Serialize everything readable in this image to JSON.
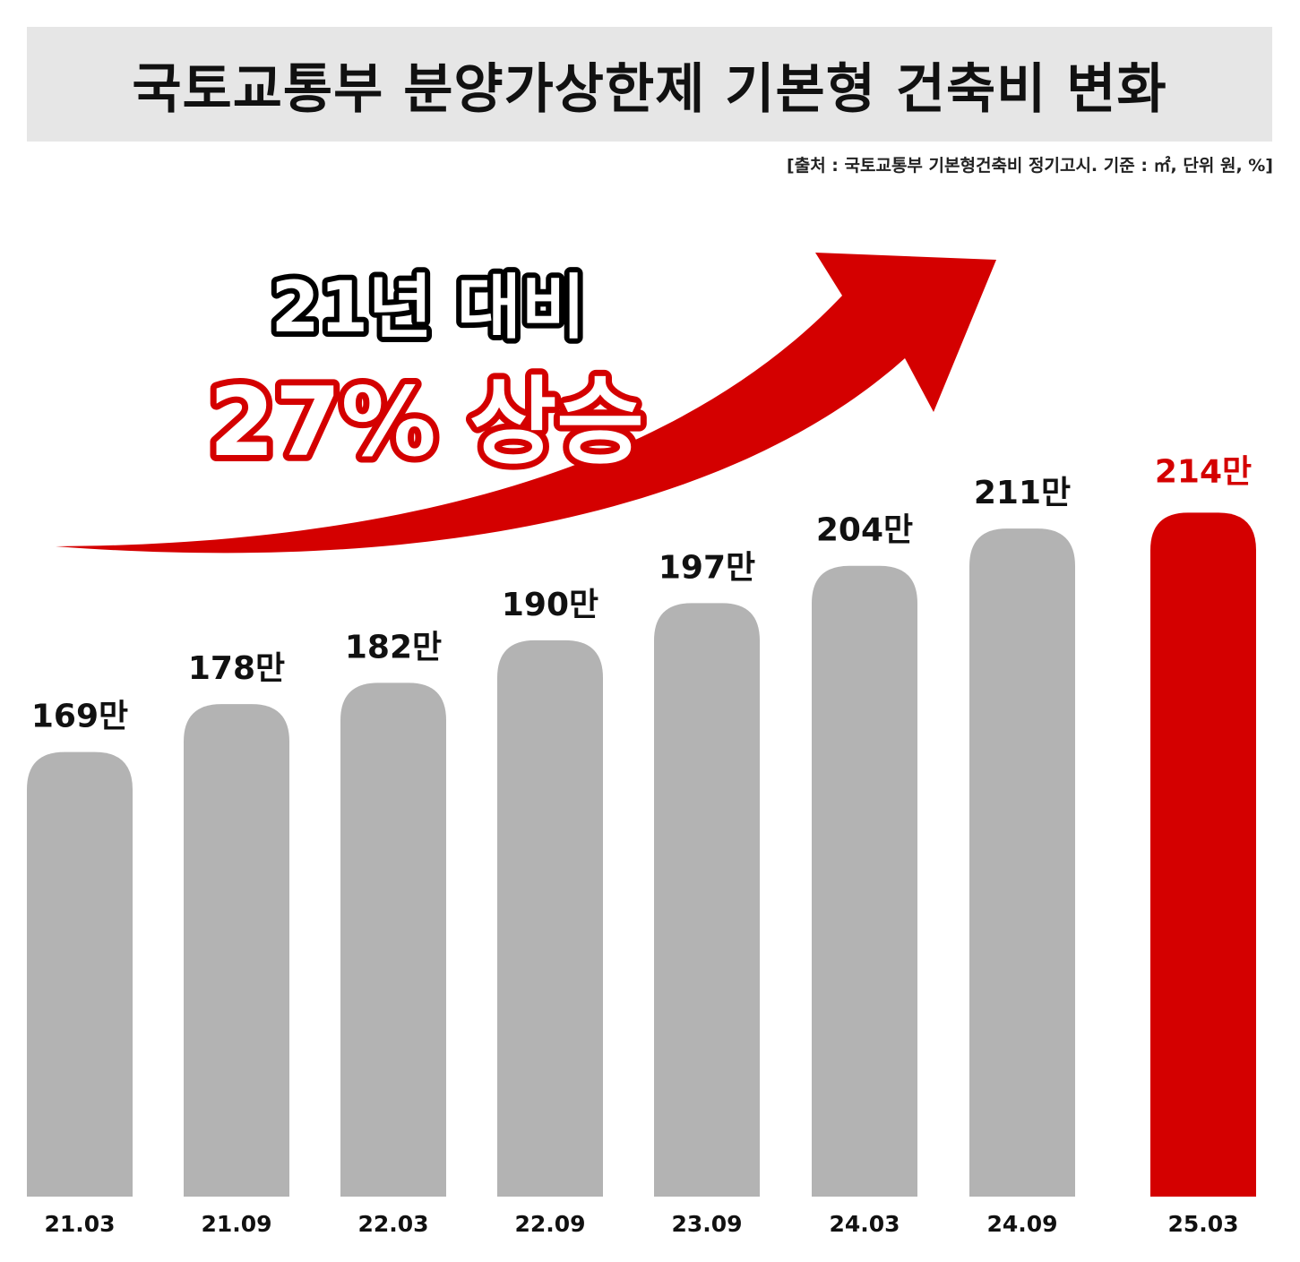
{
  "title": "국토교통부 분양가상한제 기본형 건축비 변화",
  "source_note": "[출처 : 국토교통부 기본형건축비 정기고시.  기준 : ㎡, 단위 원, %]",
  "callout": {
    "line1": "21년 대비",
    "line2": "27% 상승"
  },
  "colors": {
    "bar_default": "#b3b3b3",
    "bar_highlight": "#d40000",
    "arrow": "#d40000",
    "title_band": "#e6e6e6",
    "text": "#111111"
  },
  "chart_data": {
    "type": "bar",
    "title": "국토교통부 분양가상한제 기본형 건축비 변화",
    "xlabel": "",
    "ylabel": "",
    "categories": [
      "21.03",
      "21.09",
      "22.03",
      "22.09",
      "23.09",
      "24.03",
      "24.09",
      "25.03"
    ],
    "values": [
      169,
      178,
      182,
      190,
      197,
      204,
      211,
      214
    ],
    "value_labels": [
      "169만",
      "178만",
      "182만",
      "190만",
      "197만",
      "204만",
      "211만",
      "214만"
    ],
    "unit": "만",
    "highlight_index": 7,
    "grid": false,
    "legend": "none"
  }
}
